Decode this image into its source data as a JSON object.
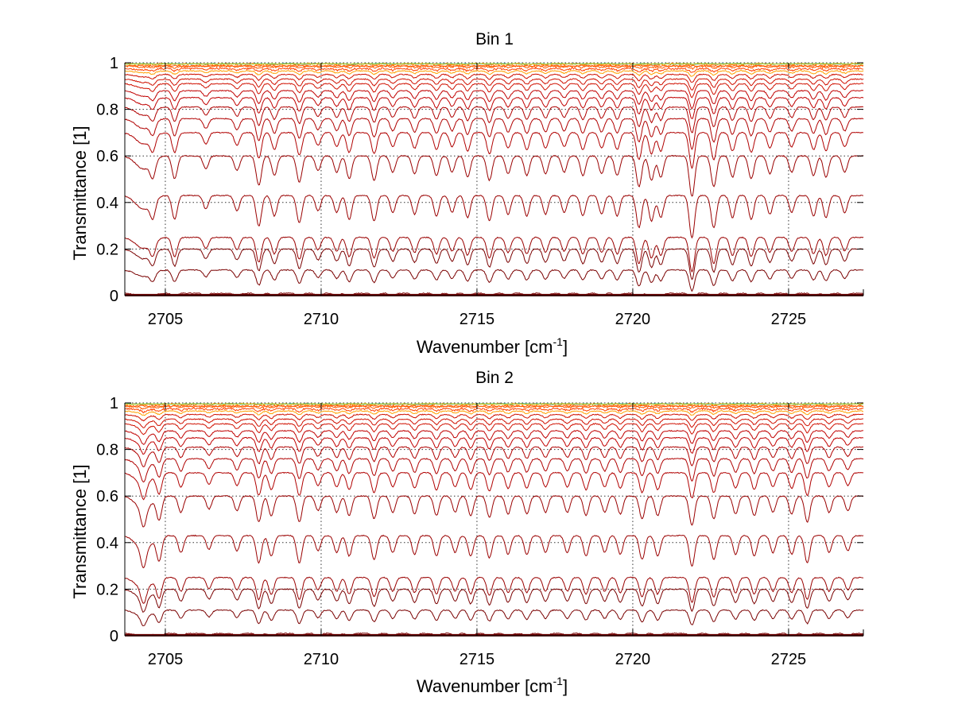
{
  "chart_data": [
    {
      "type": "line",
      "title": "Bin 1",
      "xlabel_main": "Wavenumber [cm",
      "xlabel_sup": "-1",
      "xlabel_end": "]",
      "ylabel": "Transmittance [1]",
      "xlim": [
        2703.7,
        2727.4
      ],
      "ylim": [
        0,
        1
      ],
      "xticks": [
        "2705",
        "2710",
        "2715",
        "2720",
        "2725"
      ],
      "yticks": [
        "0",
        "0.2",
        "0.4",
        "0.6",
        "0.8",
        "1"
      ],
      "grid": true,
      "legend": "none",
      "trace_colors": [
        "#7a0000",
        "#9a0000",
        "#b00000",
        "#c00000",
        "#d01000",
        "#e02000",
        "#f03000",
        "#ff4000",
        "#ff5a00",
        "#ff7000",
        "#ff8a00",
        "#ffa000"
      ],
      "top_colors": [
        "#21a5c8",
        "#4cc04c",
        "#e8e020"
      ],
      "series_baselines": [
        0.01,
        0.11,
        0.2,
        0.25,
        0.43,
        0.6,
        0.7,
        0.76,
        0.81,
        0.85,
        0.88,
        0.91,
        0.93,
        0.95,
        0.965,
        0.975,
        0.985,
        0.995
      ],
      "absorption_lines": [
        {
          "x": 2704.6,
          "depth": 0.5
        },
        {
          "x": 2705.3,
          "depth": 0.7
        },
        {
          "x": 2706.3,
          "depth": 0.4
        },
        {
          "x": 2707.3,
          "depth": 0.45
        },
        {
          "x": 2708.0,
          "depth": 0.9
        },
        {
          "x": 2708.5,
          "depth": 0.6
        },
        {
          "x": 2709.3,
          "depth": 0.8
        },
        {
          "x": 2709.9,
          "depth": 0.45
        },
        {
          "x": 2710.5,
          "depth": 0.5
        },
        {
          "x": 2710.9,
          "depth": 0.7
        },
        {
          "x": 2711.7,
          "depth": 0.75
        },
        {
          "x": 2712.3,
          "depth": 0.5
        },
        {
          "x": 2713.0,
          "depth": 0.55
        },
        {
          "x": 2713.7,
          "depth": 0.6
        },
        {
          "x": 2714.2,
          "depth": 0.5
        },
        {
          "x": 2714.7,
          "depth": 0.65
        },
        {
          "x": 2715.4,
          "depth": 0.75
        },
        {
          "x": 2716.0,
          "depth": 0.55
        },
        {
          "x": 2716.6,
          "depth": 0.6
        },
        {
          "x": 2717.2,
          "depth": 0.55
        },
        {
          "x": 2717.8,
          "depth": 0.5
        },
        {
          "x": 2718.4,
          "depth": 0.6
        },
        {
          "x": 2719.0,
          "depth": 0.55
        },
        {
          "x": 2719.5,
          "depth": 0.6
        },
        {
          "x": 2720.2,
          "depth": 0.95
        },
        {
          "x": 2720.6,
          "depth": 0.75
        },
        {
          "x": 2720.9,
          "depth": 0.65
        },
        {
          "x": 2721.9,
          "depth": 1.25
        },
        {
          "x": 2722.6,
          "depth": 0.95
        },
        {
          "x": 2723.2,
          "depth": 0.65
        },
        {
          "x": 2723.8,
          "depth": 0.7
        },
        {
          "x": 2724.4,
          "depth": 0.55
        },
        {
          "x": 2725.1,
          "depth": 0.5
        },
        {
          "x": 2725.8,
          "depth": 0.6
        },
        {
          "x": 2726.2,
          "depth": 0.65
        },
        {
          "x": 2726.8,
          "depth": 0.5
        }
      ]
    },
    {
      "type": "line",
      "title": "Bin 2",
      "xlabel_main": "Wavenumber [cm",
      "xlabel_sup": "-1",
      "xlabel_end": "]",
      "ylabel": "Transmittance [1]",
      "xlim": [
        2703.7,
        2727.4
      ],
      "ylim": [
        0,
        1
      ],
      "xticks": [
        "2705",
        "2710",
        "2715",
        "2720",
        "2725"
      ],
      "yticks": [
        "0",
        "0.2",
        "0.4",
        "0.6",
        "0.8",
        "1"
      ],
      "grid": true,
      "legend": "none",
      "trace_colors": [
        "#7a0000",
        "#9a0000",
        "#b00000",
        "#c00000",
        "#d01000",
        "#e02000",
        "#f03000",
        "#ff4000",
        "#ff5a00",
        "#ff7000",
        "#ff8a00",
        "#ffa000"
      ],
      "top_colors": [
        "#21a5c8",
        "#4cc04c",
        "#e8e020"
      ],
      "series_baselines": [
        0.01,
        0.11,
        0.2,
        0.25,
        0.43,
        0.6,
        0.7,
        0.76,
        0.81,
        0.85,
        0.88,
        0.91,
        0.93,
        0.95,
        0.965,
        0.975,
        0.985,
        0.995
      ],
      "absorption_lines": [
        {
          "x": 2704.3,
          "depth": 0.55
        },
        {
          "x": 2704.8,
          "depth": 0.7
        },
        {
          "x": 2705.5,
          "depth": 0.5
        },
        {
          "x": 2706.4,
          "depth": 0.4
        },
        {
          "x": 2707.3,
          "depth": 0.45
        },
        {
          "x": 2708.0,
          "depth": 0.8
        },
        {
          "x": 2708.4,
          "depth": 0.6
        },
        {
          "x": 2709.3,
          "depth": 0.8
        },
        {
          "x": 2709.9,
          "depth": 0.45
        },
        {
          "x": 2710.5,
          "depth": 0.5
        },
        {
          "x": 2710.9,
          "depth": 0.6
        },
        {
          "x": 2711.7,
          "depth": 0.7
        },
        {
          "x": 2712.3,
          "depth": 0.5
        },
        {
          "x": 2713.0,
          "depth": 0.55
        },
        {
          "x": 2713.7,
          "depth": 0.6
        },
        {
          "x": 2714.3,
          "depth": 0.5
        },
        {
          "x": 2714.8,
          "depth": 0.6
        },
        {
          "x": 2715.4,
          "depth": 0.65
        },
        {
          "x": 2716.0,
          "depth": 0.55
        },
        {
          "x": 2716.6,
          "depth": 0.55
        },
        {
          "x": 2717.2,
          "depth": 0.5
        },
        {
          "x": 2717.9,
          "depth": 0.5
        },
        {
          "x": 2718.5,
          "depth": 0.6
        },
        {
          "x": 2719.1,
          "depth": 0.5
        },
        {
          "x": 2719.6,
          "depth": 0.55
        },
        {
          "x": 2720.3,
          "depth": 0.7
        },
        {
          "x": 2720.8,
          "depth": 0.6
        },
        {
          "x": 2721.9,
          "depth": 0.9
        },
        {
          "x": 2722.6,
          "depth": 0.7
        },
        {
          "x": 2723.3,
          "depth": 0.55
        },
        {
          "x": 2723.9,
          "depth": 0.6
        },
        {
          "x": 2724.5,
          "depth": 0.5
        },
        {
          "x": 2725.1,
          "depth": 0.55
        },
        {
          "x": 2725.6,
          "depth": 0.8
        },
        {
          "x": 2726.3,
          "depth": 0.5
        },
        {
          "x": 2726.9,
          "depth": 0.45
        }
      ]
    }
  ]
}
